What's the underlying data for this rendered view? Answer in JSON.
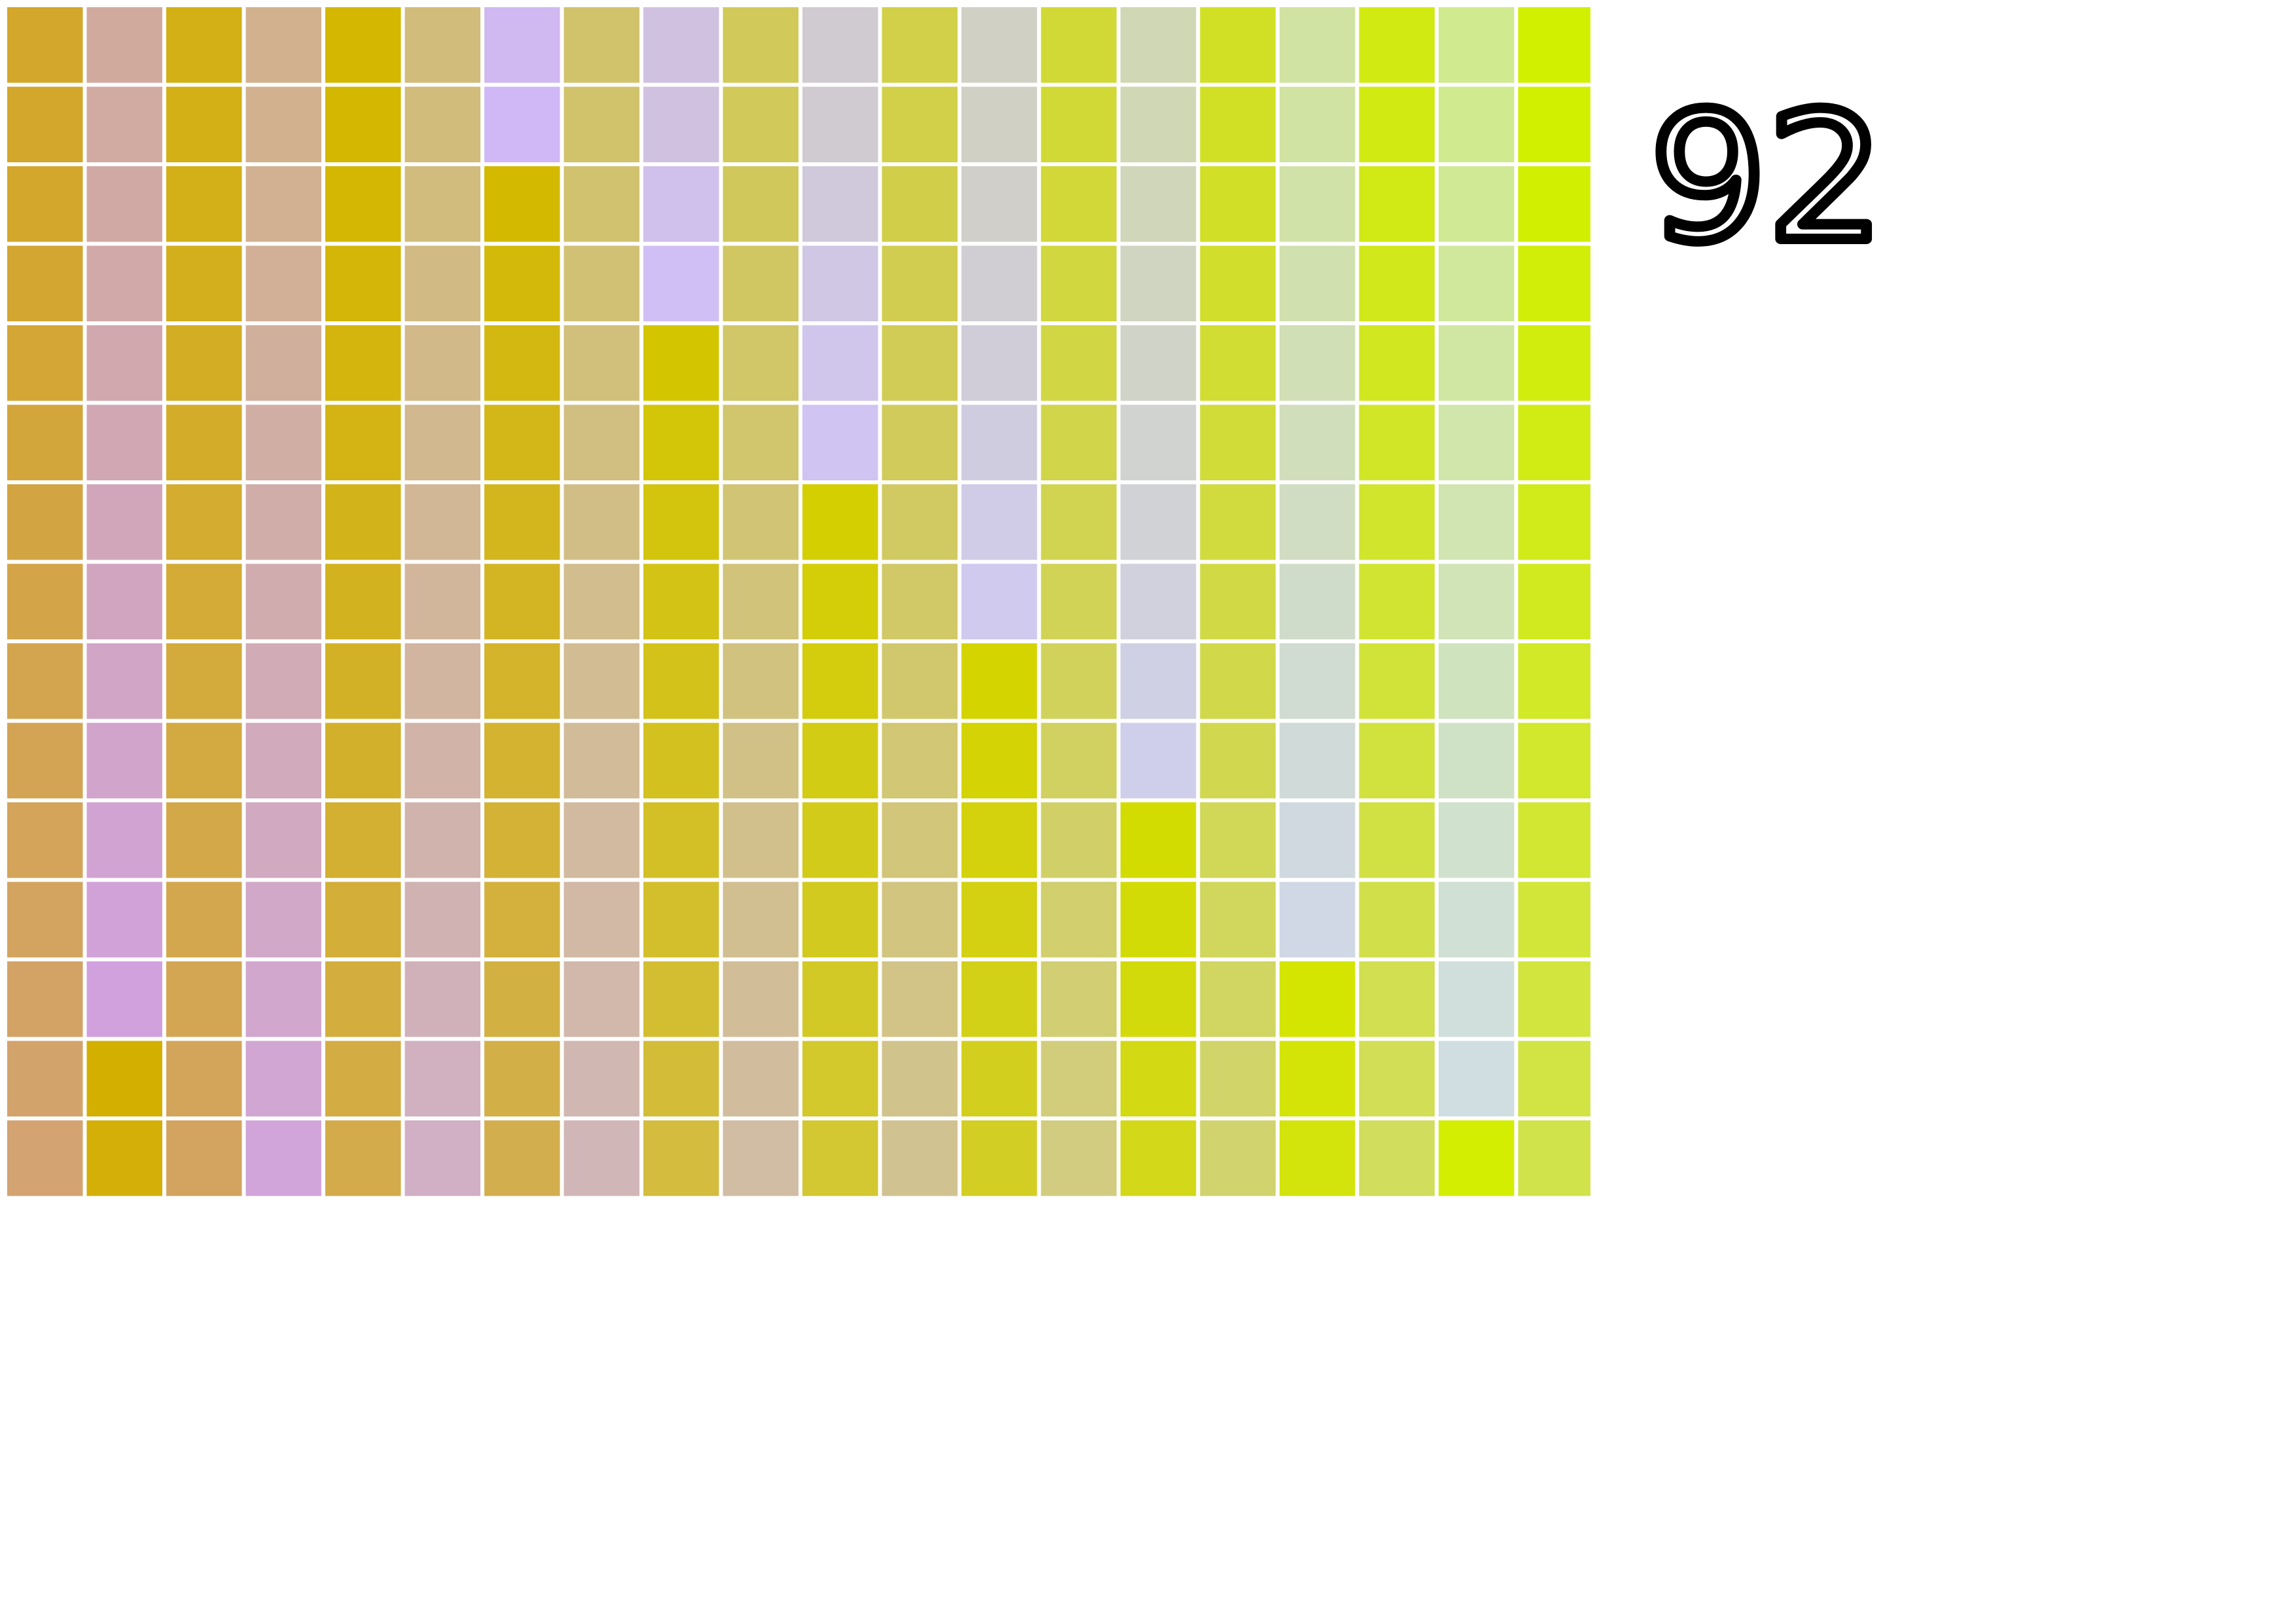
{
  "plate_number": "92",
  "grid": {
    "rows": 15,
    "cols": 20,
    "colors": [
      [
        "#D3A72B",
        "#D1AA9E",
        "#D3B016",
        "#D1B18E",
        "#D3B700",
        "#D1BC7B",
        "#D0B8F0",
        "#D1C36C",
        "#D0C1E1",
        "#D1C95A",
        "#D0CAD1",
        "#D1D048",
        "#D0D0C5",
        "#D1D936",
        "#D0D7B4",
        "#D1E024",
        "#D0E3A2",
        "#D1EA12",
        "#D0EA90",
        "#D1F000"
      ],
      [
        "#D3A72B",
        "#D1AAA1",
        "#D3B016",
        "#D1B18E",
        "#D3B700",
        "#D1BC7B",
        "#D0B8F6",
        "#D1C36C",
        "#D0C1E1",
        "#D1C95A",
        "#D0CAD1",
        "#D1D048",
        "#D0D0C5",
        "#D1D936",
        "#D0D7B4",
        "#D1E024",
        "#D0E3A2",
        "#D1EA12",
        "#D0EA90",
        "#D1F000"
      ],
      [
        "#D3A72B",
        "#D1A9A4",
        "#D3B018",
        "#D1B191",
        "#D3B702",
        "#D1BC7D",
        "#D3B900",
        "#D1C26F",
        "#D0C0EC",
        "#D1C85C",
        "#D0C9DC",
        "#D1CF4A",
        "#D0CFCA",
        "#D1D838",
        "#D0D6BA",
        "#D1DF26",
        "#D0E2A7",
        "#D1E914",
        "#D0E995",
        "#D1EF00"
      ],
      [
        "#D3A631",
        "#D1A9A8",
        "#D3AF1E",
        "#D1B097",
        "#D3B608",
        "#D1BA83",
        "#D3B90A",
        "#D1C175",
        "#D0BFF4",
        "#D1C762",
        "#D0C7E4",
        "#D1CD50",
        "#D0CED2",
        "#D1D73E",
        "#D0D5C1",
        "#D1DE2C",
        "#D0E0AE",
        "#D1E81A",
        "#D0E89C",
        "#D1EE08"
      ],
      [
        "#D3A636",
        "#D1A8AE",
        "#D3AE24",
        "#D1AF9D",
        "#D3B50E",
        "#D1B989",
        "#D3B812",
        "#D1C07B",
        "#D3C600",
        "#D1C668",
        "#D0C5EB",
        "#D1CC56",
        "#D0CDD9",
        "#D1D644",
        "#D0D4C8",
        "#D1DD32",
        "#D0DFB5",
        "#D1E720",
        "#D0E7A3",
        "#D1ED0E"
      ],
      [
        "#D3A63C",
        "#D1A7B4",
        "#D3AD2A",
        "#D1AEA3",
        "#D3B414",
        "#D1B88F",
        "#D3B718",
        "#D1BF81",
        "#D3C508",
        "#D1C56E",
        "#D0C4F2",
        "#D1CB5C",
        "#D0CCE0",
        "#D1D54A",
        "#D0D3CF",
        "#D1DC38",
        "#D0DEBC",
        "#D1E626",
        "#D0E6AA",
        "#D1EC14"
      ],
      [
        "#D3A542",
        "#D1A6BA",
        "#D3AC30",
        "#D1ADA9",
        "#D3B31A",
        "#D1B795",
        "#D3B61E",
        "#D1BE87",
        "#D3C40E",
        "#D1C474",
        "#D3CF00",
        "#D1CA62",
        "#D0CBE7",
        "#D1D450",
        "#D0D2D6",
        "#D1DB3E",
        "#D0DDC3",
        "#D1E52C",
        "#D0E5B1",
        "#D1EB1A"
      ],
      [
        "#D3A548",
        "#D1A5C0",
        "#D3AB36",
        "#D1ACAF",
        "#D3B220",
        "#D1B69B",
        "#D3B524",
        "#D1BD8D",
        "#D3C314",
        "#D1C37A",
        "#D3CE08",
        "#D1C968",
        "#D0CAEE",
        "#D1D356",
        "#D0D1DD",
        "#D1DA44",
        "#D0DCCA",
        "#D1E432",
        "#D0E4B8",
        "#D1EA20"
      ],
      [
        "#D3A54E",
        "#D1A5C6",
        "#D3AA3C",
        "#D1ABB5",
        "#D3B126",
        "#D1B5A1",
        "#D3B42A",
        "#D1BC93",
        "#D3C21A",
        "#D1C280",
        "#D3CD0E",
        "#D1C86E",
        "#D3D400",
        "#D1D25C",
        "#D0D0E4",
        "#D1D94A",
        "#D0DBD1",
        "#D1E338",
        "#D0E3BF",
        "#D1E926"
      ],
      [
        "#D3A454",
        "#D1A4CC",
        "#D3A942",
        "#D1AABB",
        "#D3B02C",
        "#D1B4A7",
        "#D3B330",
        "#D1BB99",
        "#D3C120",
        "#D1C186",
        "#D3CC14",
        "#D1C774",
        "#D3D306",
        "#D1D162",
        "#D0CFEB",
        "#D1D850",
        "#D0DAD8",
        "#D1E23E",
        "#D0E2C6",
        "#D1E82C"
      ],
      [
        "#D3A45A",
        "#D1A3D2",
        "#D3A848",
        "#D1A9C1",
        "#D3AF32",
        "#D1B3AD",
        "#D3B236",
        "#D1BA9F",
        "#D3C026",
        "#D1C08C",
        "#D3CB1A",
        "#D1C67A",
        "#D3D20C",
        "#D1D068",
        "#D3DC00",
        "#D1D756",
        "#D0D9DF",
        "#D1E144",
        "#D0E1CD",
        "#D1E732"
      ],
      [
        "#D3A460",
        "#D1A2D8",
        "#D3A74E",
        "#D1A8C7",
        "#D3AE38",
        "#D1B2B3",
        "#D3B13C",
        "#D1B9A5",
        "#D3BF2C",
        "#D1BF92",
        "#D3CA20",
        "#D1C580",
        "#D3D112",
        "#D1CF6E",
        "#D3DB06",
        "#D1D65C",
        "#D0D8E6",
        "#D1E04A",
        "#D0E0D4",
        "#D1E638"
      ],
      [
        "#D3A366",
        "#D1A1DE",
        "#D3A654",
        "#D1A7CD",
        "#D3AD3E",
        "#D1B1B9",
        "#D3B042",
        "#D1B8AB",
        "#D3BE32",
        "#D1BE98",
        "#D3C926",
        "#D1C486",
        "#D3D018",
        "#D1CE74",
        "#D3DA0C",
        "#D1D562",
        "#D3E500",
        "#D1DF50",
        "#D0DFDB",
        "#D1E53E"
      ],
      [
        "#D3A36C",
        "#D3B000",
        "#D3A55A",
        "#D1A6D3",
        "#D3AC44",
        "#D1B0BF",
        "#D3AF48",
        "#D1B7B1",
        "#D3BD38",
        "#D1BD9E",
        "#D3C82C",
        "#D1C38C",
        "#D3CF1E",
        "#D1CD7A",
        "#D3D912",
        "#D1D468",
        "#D3E406",
        "#D1DE56",
        "#D0DEE2",
        "#D1E444"
      ],
      [
        "#D3A372",
        "#D3AF08",
        "#D3A460",
        "#D1A5D9",
        "#D3AB4A",
        "#D1AFC5",
        "#D3AE4E",
        "#D1B6B7",
        "#D3BC3E",
        "#D1BCA4",
        "#D3C732",
        "#D1C292",
        "#D3CE24",
        "#D1CC80",
        "#D3D818",
        "#D1D36E",
        "#D3E30C",
        "#D1DD5C",
        "#D3EE00",
        "#D1E34A"
      ]
    ]
  }
}
